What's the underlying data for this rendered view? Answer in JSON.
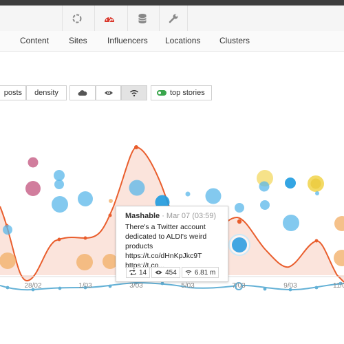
{
  "toolbar": {
    "icons": [
      "refresh-icon",
      "dashboard-icon",
      "database-icon",
      "wrench-icon"
    ]
  },
  "nav": {
    "items": [
      "Content",
      "Sites",
      "Influencers",
      "Locations",
      "Clusters"
    ]
  },
  "controls": {
    "posts": "posts",
    "density": "density",
    "view_icons": [
      "cloud-icon",
      "eye-icon",
      "wifi-icon"
    ],
    "top_stories": "top stories",
    "toggle_color": "#3aa64c"
  },
  "chart_data": {
    "type": "line",
    "x_tick_labels": [
      "28/02",
      "1/03",
      "3/03",
      "5/03",
      "7/03",
      "9/03",
      "11/0"
    ],
    "colors": {
      "line": "#e95d2c",
      "area": "#fbe4dc",
      "baseline": "#64b1d6",
      "bubble_blue": "#5ab7ea",
      "bubble_pink": "#c9668c",
      "bubble_orange": "#f2b26d",
      "bubble_yellow": "#f1d34a"
    }
  },
  "tooltip": {
    "author": "Mashable",
    "meta": "· Mar 07 (03:59)",
    "text": "There's a Twitter account dedicated to ALDI's weird products https://t.co/dHnKpJkc9T https://t.co...",
    "retweets": "14",
    "views": "454",
    "reach": "6.81 m"
  }
}
